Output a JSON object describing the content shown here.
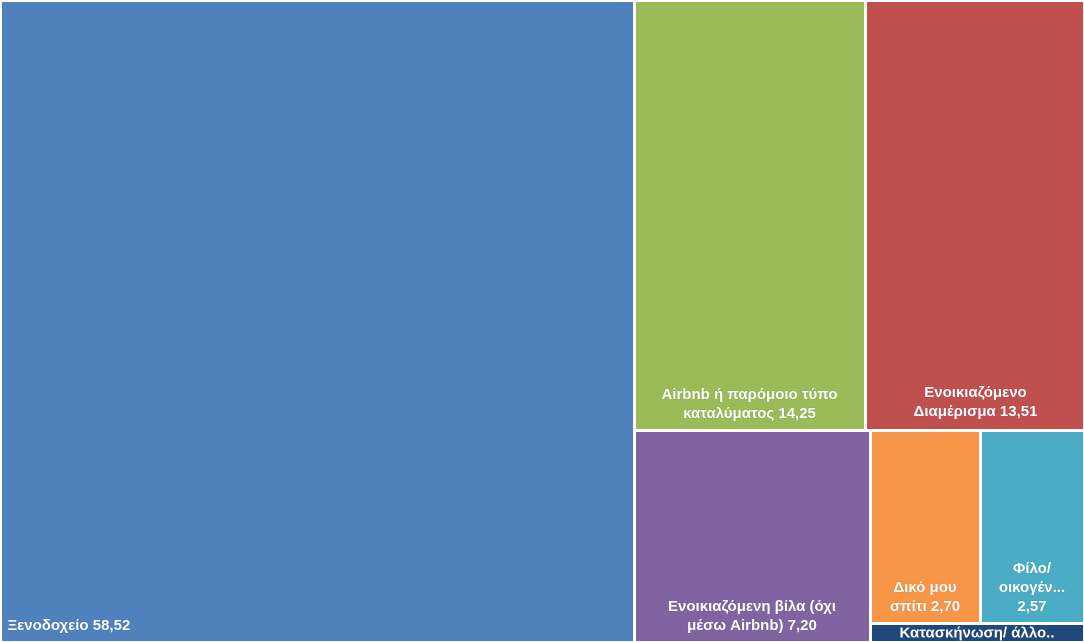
{
  "chart_data": {
    "type": "treemap",
    "title": "",
    "values": [
      {
        "name": "Ξενοδοχείο",
        "label": "Ξενοδοχείο 58,52",
        "value": 58.52,
        "color": "#4F81BD"
      },
      {
        "name": "Airbnb ή παρόμοιο τύπο καταλύματος",
        "label": "Airbnb ή παρόμοιο τύπο\nκαταλύματος 14,25",
        "value": 14.25,
        "color": "#9BBB59"
      },
      {
        "name": "Ενοικιαζόμενο Διαμέρισμα",
        "label": "Ενοικιαζόμενο\nΔιαμέρισμα 13,51",
        "value": 13.51,
        "color": "#C0504D"
      },
      {
        "name": "Ενοικιαζόμενη βίλα (όχι μέσω Airbnb)",
        "label": "Ενοικιαζόμενη βίλα (όχι\nμέσω Airbnb) 7,20",
        "value": 7.2,
        "color": "#8064A2"
      },
      {
        "name": "Δικό μου σπίτι",
        "label": "Δικό μου\nσπίτι 2,70",
        "value": 2.7,
        "color": "#F79646"
      },
      {
        "name": "Φίλο/ οικογέν...",
        "label": "Φίλο/\nοικογέν...\n2,57",
        "value": 2.57,
        "color": "#4BACC6"
      },
      {
        "name": "Κατασκήνωση/ άλλο..",
        "label": "Κατασκήνωση/ άλλο..",
        "value": 1.25,
        "color": "#1F497D"
      }
    ]
  }
}
